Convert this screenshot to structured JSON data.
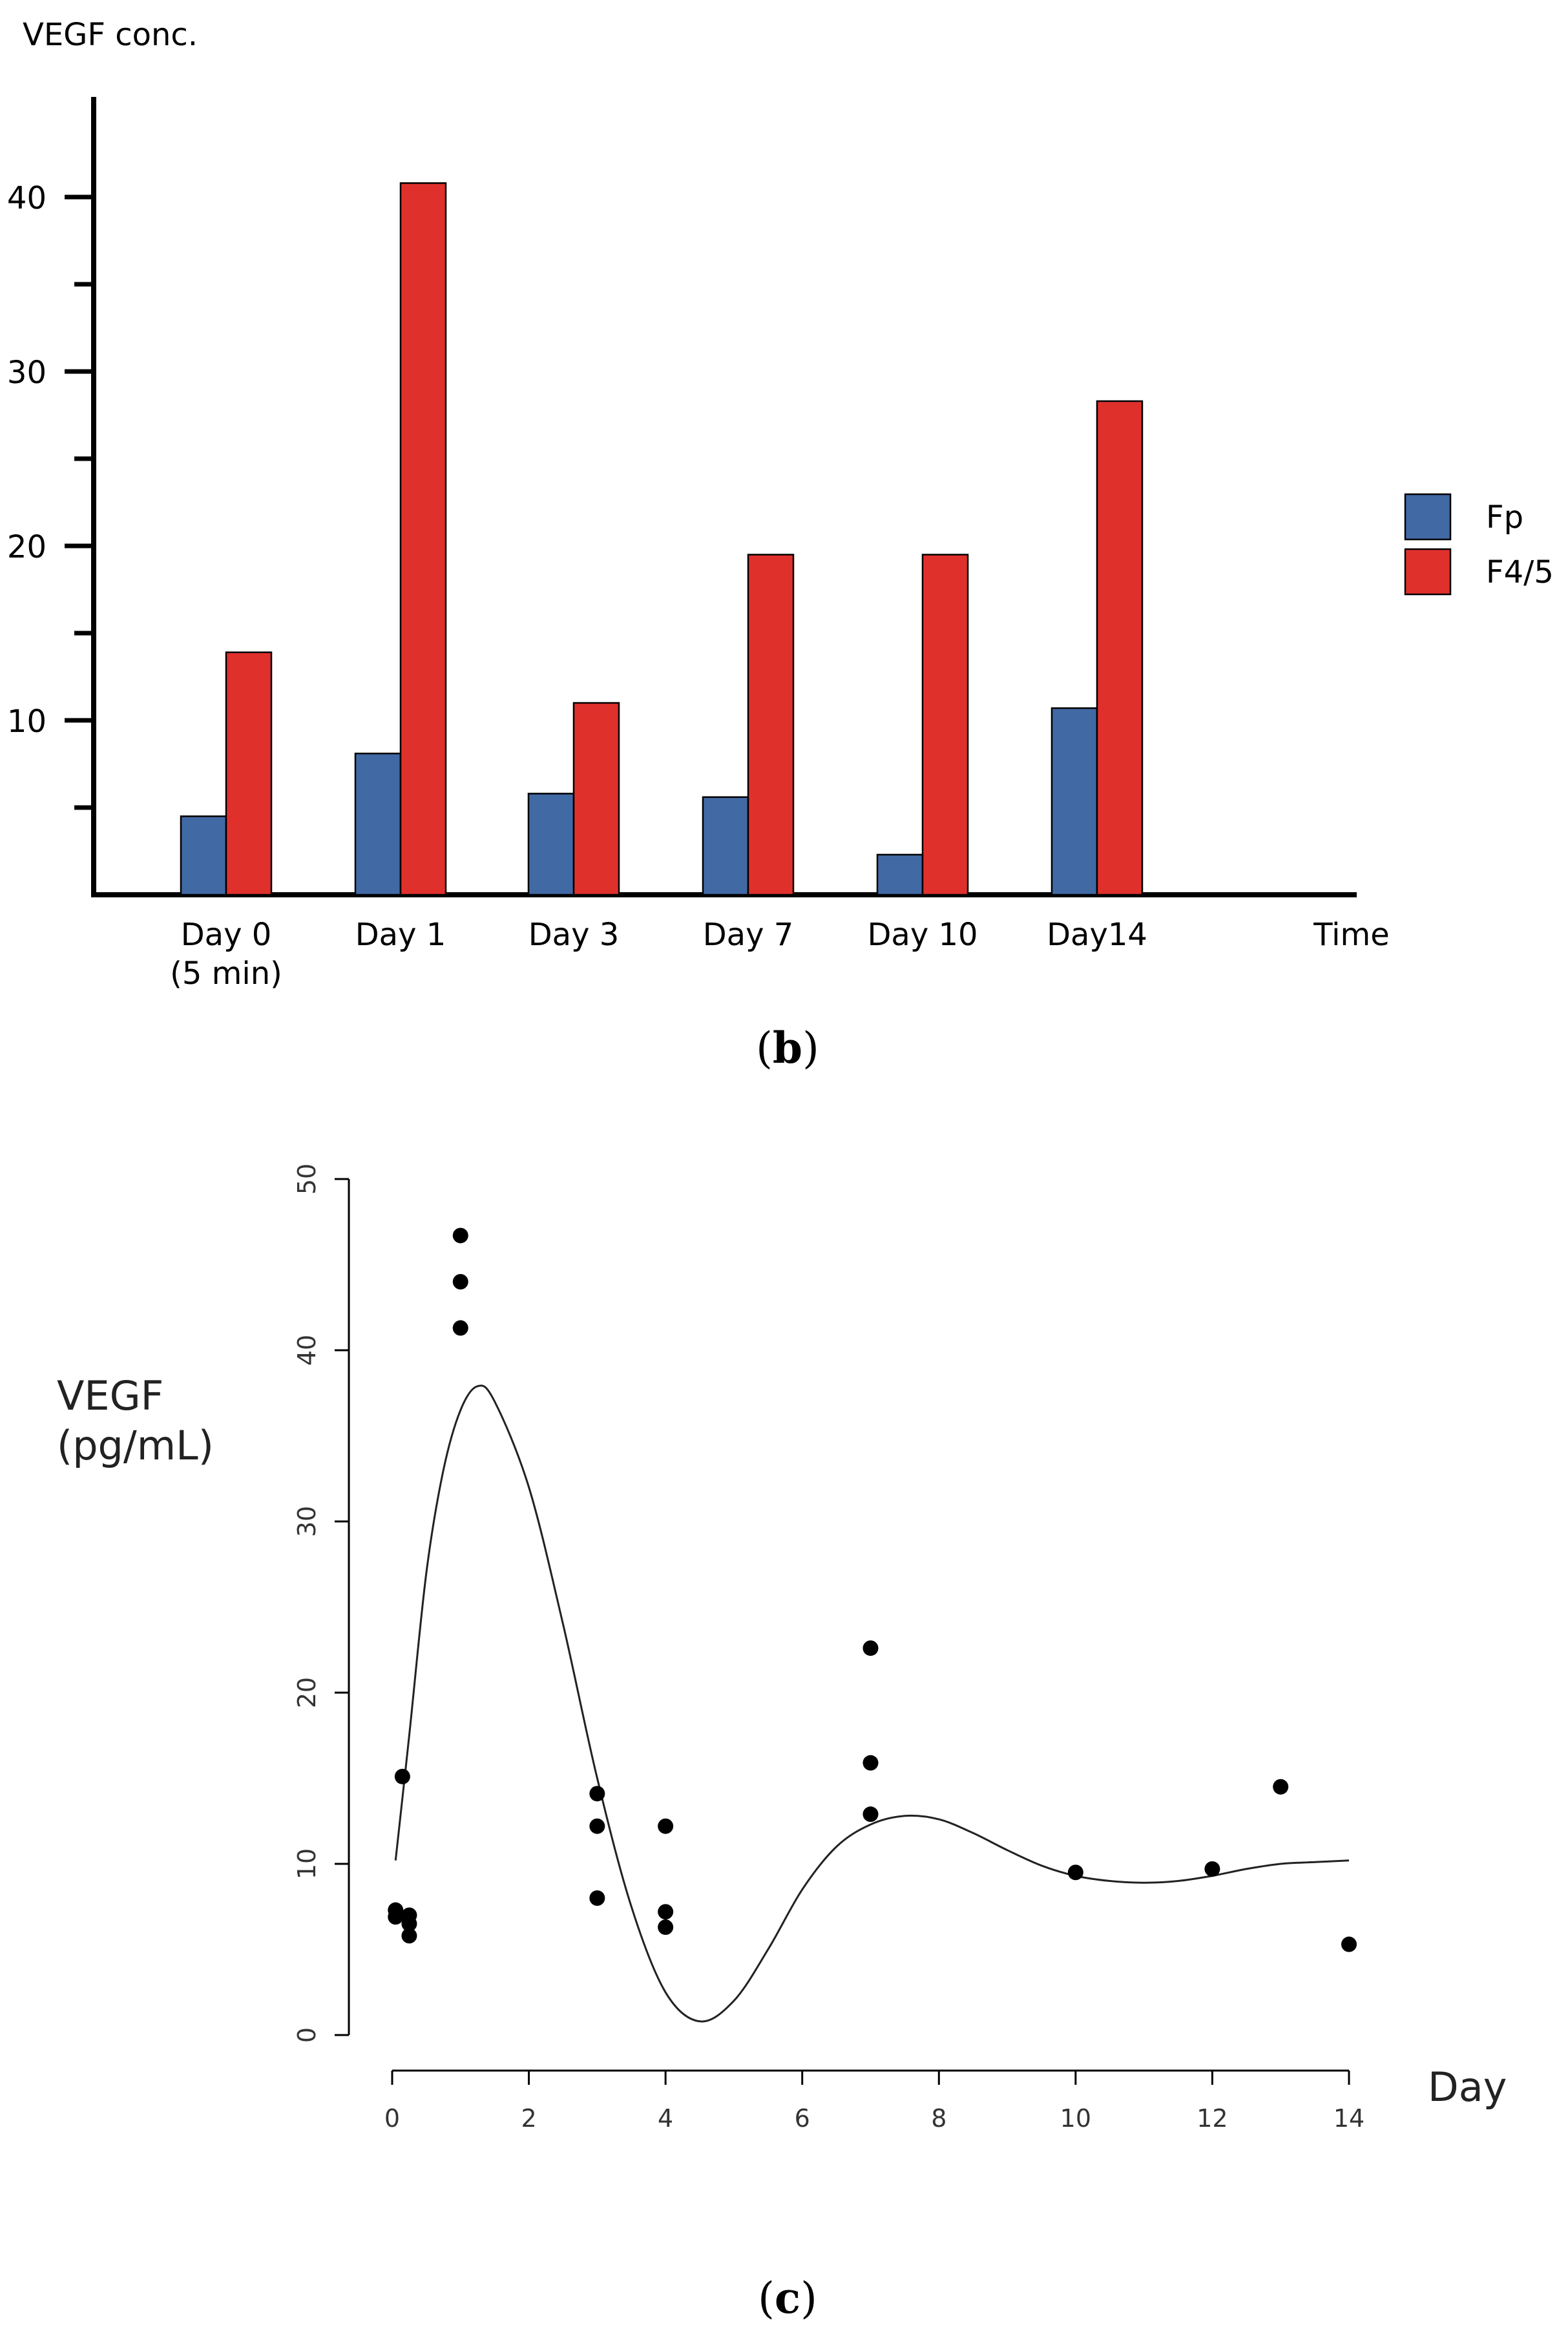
{
  "panel_b_label": {
    "open": "(",
    "letter": "b",
    "close": ")"
  },
  "panel_c_label": {
    "open": "(",
    "letter": "c",
    "close": ")"
  },
  "colors": {
    "fp": "#4169a4",
    "f45": "#e0302c",
    "axis": "#000000",
    "curve": "#222222",
    "point": "#000000"
  },
  "chart_data": [
    {
      "type": "bar",
      "title": "",
      "ylabel": "VEGF conc.",
      "xlabel": "Time",
      "categories": [
        [
          "Day 0",
          "(5 min)"
        ],
        [
          "Day 1"
        ],
        [
          "Day 3"
        ],
        [
          "Day 7"
        ],
        [
          "Day 10"
        ],
        [
          "Day14"
        ]
      ],
      "series": [
        {
          "name": "Fp",
          "values": [
            4.5,
            8.1,
            5.8,
            5.6,
            2.3,
            10.7
          ]
        },
        {
          "name": "F4/5",
          "values": [
            13.9,
            40.8,
            11.0,
            19.5,
            19.5,
            28.3
          ]
        }
      ],
      "ylim": [
        0,
        45
      ],
      "yticks": [
        10,
        20,
        30,
        40
      ],
      "legend": "right",
      "grid": false
    },
    {
      "type": "scatter",
      "title": "",
      "ylabel": [
        "VEGF",
        "(pg/mL)"
      ],
      "xlabel": "Day",
      "xlim": [
        0,
        14
      ],
      "ylim": [
        0,
        50
      ],
      "xticks": [
        0,
        2,
        4,
        6,
        8,
        10,
        12,
        14
      ],
      "yticks": [
        0,
        10,
        20,
        30,
        40,
        50
      ],
      "points": [
        {
          "x": 0.05,
          "y": 7.3
        },
        {
          "x": 0.05,
          "y": 6.9
        },
        {
          "x": 0.15,
          "y": 15.1
        },
        {
          "x": 0.25,
          "y": 7.0
        },
        {
          "x": 0.25,
          "y": 6.5
        },
        {
          "x": 0.25,
          "y": 5.8
        },
        {
          "x": 1.0,
          "y": 46.7
        },
        {
          "x": 1.0,
          "y": 44.0
        },
        {
          "x": 1.0,
          "y": 41.3
        },
        {
          "x": 3.0,
          "y": 14.1
        },
        {
          "x": 3.0,
          "y": 12.2
        },
        {
          "x": 3.0,
          "y": 8.0
        },
        {
          "x": 4.0,
          "y": 12.2
        },
        {
          "x": 4.0,
          "y": 7.2
        },
        {
          "x": 4.0,
          "y": 6.3
        },
        {
          "x": 7.0,
          "y": 22.6
        },
        {
          "x": 7.0,
          "y": 15.9
        },
        {
          "x": 7.0,
          "y": 12.9
        },
        {
          "x": 10.0,
          "y": 9.5
        },
        {
          "x": 12.0,
          "y": 9.7
        },
        {
          "x": 13.0,
          "y": 14.5
        },
        {
          "x": 14.0,
          "y": 5.3
        }
      ],
      "fit_curve": [
        {
          "x": 0.05,
          "y": 10.2
        },
        {
          "x": 0.25,
          "y": 17.5
        },
        {
          "x": 0.5,
          "y": 27.0
        },
        {
          "x": 0.75,
          "y": 33.0
        },
        {
          "x": 1.0,
          "y": 36.5
        },
        {
          "x": 1.25,
          "y": 37.9
        },
        {
          "x": 1.5,
          "y": 37.0
        },
        {
          "x": 2.0,
          "y": 32.0
        },
        {
          "x": 2.5,
          "y": 24.0
        },
        {
          "x": 3.0,
          "y": 15.0
        },
        {
          "x": 3.5,
          "y": 7.5
        },
        {
          "x": 4.0,
          "y": 2.5
        },
        {
          "x": 4.5,
          "y": 0.8
        },
        {
          "x": 5.0,
          "y": 2.0
        },
        {
          "x": 5.5,
          "y": 5.0
        },
        {
          "x": 6.0,
          "y": 8.5
        },
        {
          "x": 6.5,
          "y": 11.0
        },
        {
          "x": 7.0,
          "y": 12.3
        },
        {
          "x": 7.5,
          "y": 12.8
        },
        {
          "x": 8.0,
          "y": 12.6
        },
        {
          "x": 8.5,
          "y": 11.8
        },
        {
          "x": 9.0,
          "y": 10.8
        },
        {
          "x": 9.5,
          "y": 9.9
        },
        {
          "x": 10.0,
          "y": 9.3
        },
        {
          "x": 10.5,
          "y": 9.0
        },
        {
          "x": 11.0,
          "y": 8.9
        },
        {
          "x": 11.5,
          "y": 9.0
        },
        {
          "x": 12.0,
          "y": 9.3
        },
        {
          "x": 12.5,
          "y": 9.7
        },
        {
          "x": 13.0,
          "y": 10.0
        },
        {
          "x": 13.5,
          "y": 10.1
        },
        {
          "x": 14.0,
          "y": 10.2
        }
      ],
      "legend": "none",
      "grid": false
    }
  ]
}
